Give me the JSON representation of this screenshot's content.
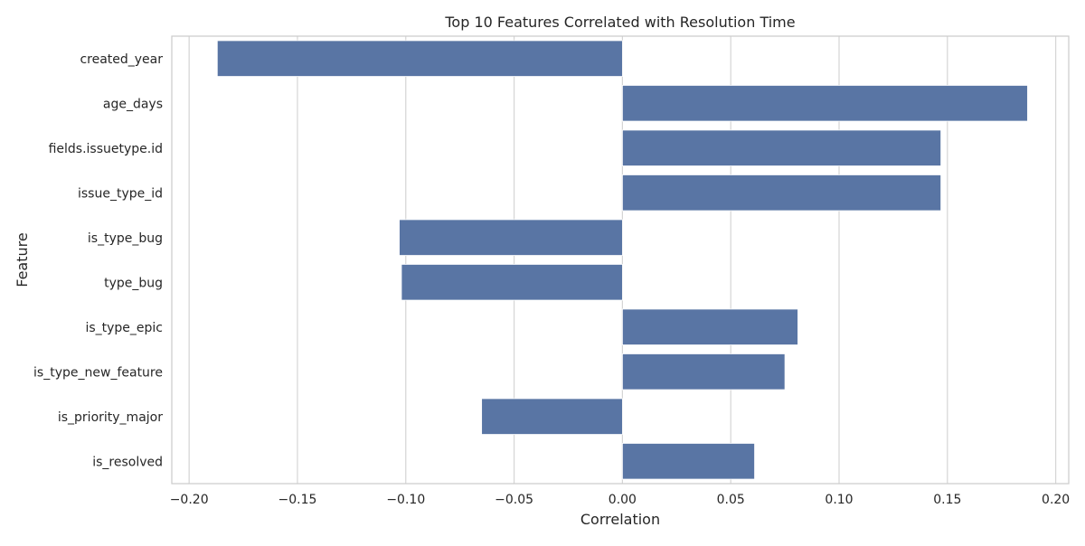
{
  "chart_data": {
    "type": "bar",
    "orientation": "horizontal",
    "title": "Top 10 Features Correlated with Resolution Time",
    "xlabel": "Correlation",
    "ylabel": "Feature",
    "categories": [
      "created_year",
      "age_days",
      "fields.issuetype.id",
      "issue_type_id",
      "is_type_bug",
      "type_bug",
      "is_type_epic",
      "is_type_new_feature",
      "is_priority_major",
      "is_resolved"
    ],
    "values": [
      -0.187,
      0.187,
      0.147,
      0.147,
      -0.103,
      -0.102,
      0.081,
      0.075,
      -0.065,
      0.061
    ],
    "xlim": [
      -0.208,
      0.206
    ],
    "xticks": [
      -0.2,
      -0.15,
      -0.1,
      -0.05,
      0.0,
      0.05,
      0.1,
      0.15,
      0.2
    ],
    "xtick_labels": [
      "−0.20",
      "−0.15",
      "−0.10",
      "−0.05",
      "0.00",
      "0.05",
      "0.10",
      "0.15",
      "0.20"
    ],
    "grid": true,
    "legend": "none",
    "bar_color": "#5975a4",
    "grid_color": "#d5d5d5",
    "spine_color": "#cccccc"
  }
}
